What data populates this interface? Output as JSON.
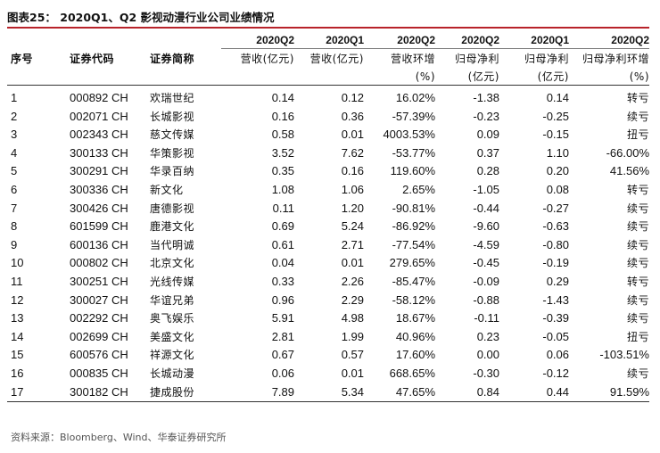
{
  "title": "图表25：  2020Q1、Q2 影视动漫行业公司业绩情况",
  "headers": {
    "row1": [
      "",
      "",
      "",
      "2020Q2",
      "2020Q1",
      "2020Q2",
      "2020Q2",
      "2020Q1",
      "2020Q2"
    ],
    "row2": [
      "序号",
      "证券代码",
      "证券简称",
      "营收(亿元)",
      "营收(亿元)",
      "营收环增",
      "归母净利",
      "归母净利",
      "归母净利环增"
    ],
    "row3": [
      "",
      "",
      "",
      "",
      "",
      "(%)",
      "(亿元)",
      "(亿元)",
      "(%)"
    ]
  },
  "rows": [
    [
      "1",
      "000892 CH",
      "欢瑞世纪",
      "0.14",
      "0.12",
      "16.02%",
      "-1.38",
      "0.14",
      "转亏"
    ],
    [
      "2",
      "002071 CH",
      "长城影视",
      "0.16",
      "0.36",
      "-57.39%",
      "-0.23",
      "-0.25",
      "续亏"
    ],
    [
      "3",
      "002343 CH",
      "慈文传媒",
      "0.58",
      "0.01",
      "4003.53%",
      "0.09",
      "-0.15",
      "扭亏"
    ],
    [
      "4",
      "300133 CH",
      "华策影视",
      "3.52",
      "7.62",
      "-53.77%",
      "0.37",
      "1.10",
      "-66.00%"
    ],
    [
      "5",
      "300291 CH",
      "华录百纳",
      "0.35",
      "0.16",
      "119.60%",
      "0.28",
      "0.20",
      "41.56%"
    ],
    [
      "6",
      "300336 CH",
      "新文化",
      "1.08",
      "1.06",
      "2.65%",
      "-1.05",
      "0.08",
      "转亏"
    ],
    [
      "7",
      "300426 CH",
      "唐德影视",
      "0.11",
      "1.20",
      "-90.81%",
      "-0.44",
      "-0.27",
      "续亏"
    ],
    [
      "8",
      "601599 CH",
      "鹿港文化",
      "0.69",
      "5.24",
      "-86.92%",
      "-9.60",
      "-0.63",
      "续亏"
    ],
    [
      "9",
      "600136 CH",
      "当代明诚",
      "0.61",
      "2.71",
      "-77.54%",
      "-4.59",
      "-0.80",
      "续亏"
    ],
    [
      "10",
      "000802 CH",
      "北京文化",
      "0.04",
      "0.01",
      "279.65%",
      "-0.45",
      "-0.19",
      "续亏"
    ],
    [
      "11",
      "300251 CH",
      "光线传媒",
      "0.33",
      "2.26",
      "-85.47%",
      "-0.09",
      "0.29",
      "转亏"
    ],
    [
      "12",
      "300027 CH",
      "华谊兄弟",
      "0.96",
      "2.29",
      "-58.12%",
      "-0.88",
      "-1.43",
      "续亏"
    ],
    [
      "13",
      "002292 CH",
      "奥飞娱乐",
      "5.91",
      "4.98",
      "18.67%",
      "-0.11",
      "-0.39",
      "续亏"
    ],
    [
      "14",
      "002699 CH",
      "美盛文化",
      "2.81",
      "1.99",
      "40.96%",
      "0.23",
      "-0.05",
      "扭亏"
    ],
    [
      "15",
      "600576 CH",
      "祥源文化",
      "0.67",
      "0.57",
      "17.60%",
      "0.00",
      "0.06",
      "-103.51%"
    ],
    [
      "16",
      "000835 CH",
      "长城动漫",
      "0.06",
      "0.01",
      "668.65%",
      "-0.30",
      "-0.12",
      "续亏"
    ],
    [
      "17",
      "300182 CH",
      "捷成股份",
      "7.89",
      "5.34",
      "47.65%",
      "0.84",
      "0.44",
      "91.59%"
    ]
  ],
  "source": "资料来源：Bloomberg、Wind、华泰证券研究所",
  "colors": {
    "accent_rule": "#b8232a"
  }
}
